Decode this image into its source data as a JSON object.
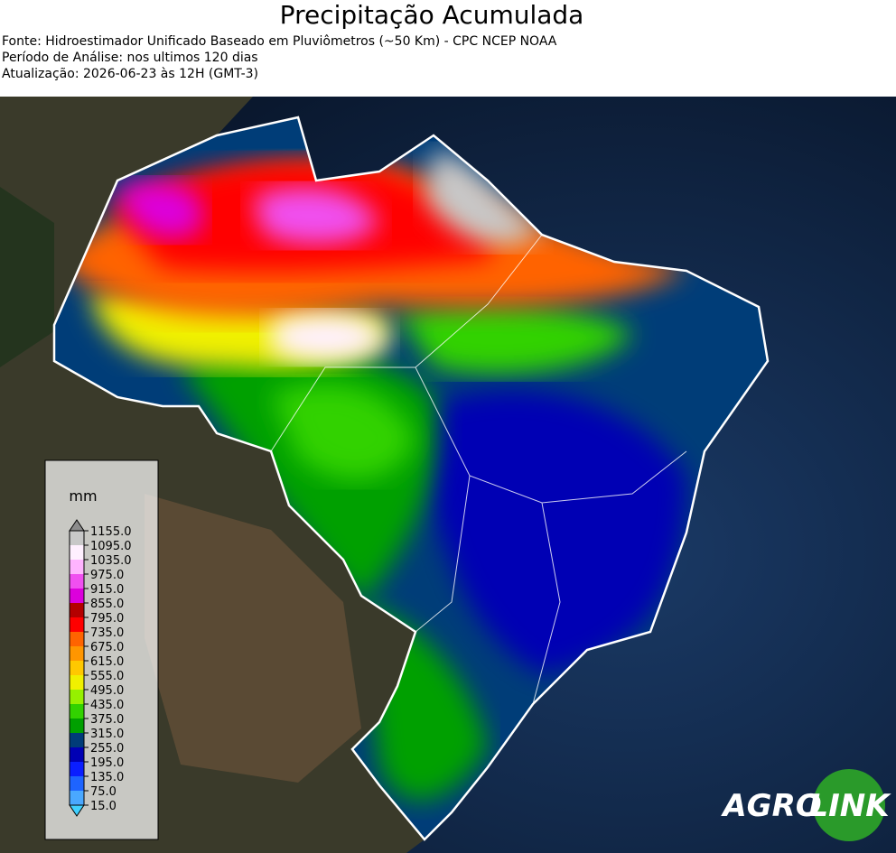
{
  "header": {
    "title": "Precipitação Acumulada",
    "lines": [
      "Fonte: Hidroestimador Unificado Baseado em Pluviômetros (~50 Km) - CPC NCEP NOAA",
      "Período de Análise: nos ultimos 120 dias",
      "Atualização: 2026-06-23 às 12H (GMT-3)"
    ]
  },
  "colorbar": {
    "unit": "mm",
    "ticks": [
      {
        "value": 15,
        "label": "15.0"
      },
      {
        "value": 75,
        "label": "75.0"
      },
      {
        "value": 135,
        "label": "135.0"
      },
      {
        "value": 195,
        "label": "195.0"
      },
      {
        "value": 255,
        "label": "255.0"
      },
      {
        "value": 315,
        "label": "315.0"
      },
      {
        "value": 375,
        "label": "375.0"
      },
      {
        "value": 435,
        "label": "435.0"
      },
      {
        "value": 495,
        "label": "495.0"
      },
      {
        "value": 555,
        "label": "555.0"
      },
      {
        "value": 615,
        "label": "615.0"
      },
      {
        "value": 675,
        "label": "675.0"
      },
      {
        "value": 735,
        "label": "735.0"
      },
      {
        "value": 795,
        "label": "795.0"
      },
      {
        "value": 855,
        "label": "855.0"
      },
      {
        "value": 915,
        "label": "915.0"
      },
      {
        "value": 975,
        "label": "975.0"
      },
      {
        "value": 1035,
        "label": "1035.0"
      },
      {
        "value": 1095,
        "label": "1095.0"
      },
      {
        "value": 1155,
        "label": "1155.0"
      }
    ],
    "colors": [
      "#4aa8ff",
      "#1e64ff",
      "#0a1eff",
      "#0000b4",
      "#003c78",
      "#00a000",
      "#32d200",
      "#96f000",
      "#f0f000",
      "#ffc800",
      "#ff9600",
      "#ff6400",
      "#ff0000",
      "#b40000",
      "#dc00dc",
      "#f050f0",
      "#ffb4ff",
      "#fff0ff",
      "#c8c8c8"
    ],
    "under_color": "#40d0ff",
    "over_color": "#8c8c8c"
  },
  "logo": {
    "left": "AGRO",
    "right": "LINK"
  }
}
